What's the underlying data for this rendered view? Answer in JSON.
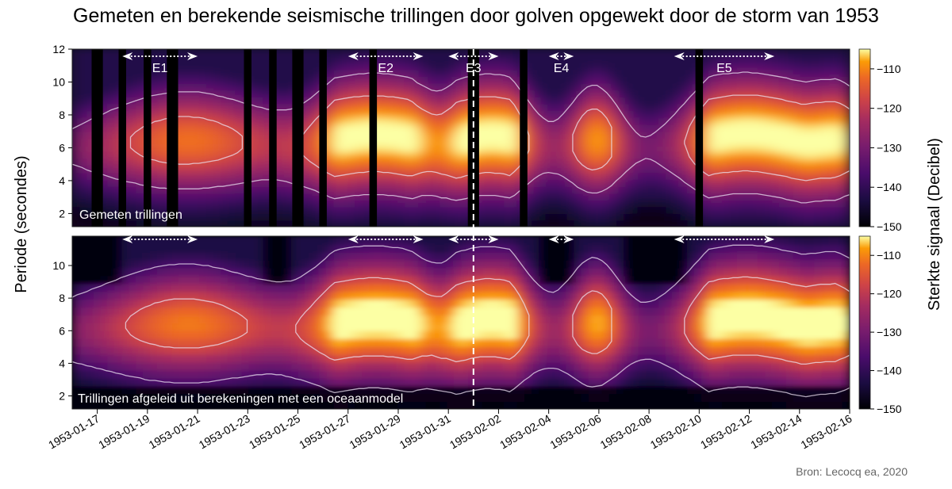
{
  "title": "Gemeten en berekende seismische trillingen door golven opgewekt door de storm van 1953",
  "credit": "Bron: Lecocq ea, 2020",
  "chart_data": {
    "type": "heatmap",
    "ylabel": "Periode (secondes)",
    "colorbar_label": "Sterkte signaal (Decibel)",
    "colorbar_ticks": [
      -110,
      -120,
      -130,
      -140,
      -150
    ],
    "colorbar_range": [
      -150,
      -105
    ],
    "colormap": "inferno",
    "x_ticks": [
      "1953-01-17",
      "1953-01-19",
      "1953-01-21",
      "1953-01-23",
      "1953-01-25",
      "1953-01-27",
      "1953-01-29",
      "1953-01-31",
      "1953-02-02",
      "1953-02-04",
      "1953-02-06",
      "1953-02-08",
      "1953-02-10",
      "1953-02-12",
      "1953-02-14",
      "1953-02-16"
    ],
    "x_range": [
      "1953-01-16",
      "1953-02-16"
    ],
    "dashed_marker_date": "1953-02-01",
    "events": [
      {
        "label": "E1",
        "start": "1953-01-18",
        "end": "1953-01-21"
      },
      {
        "label": "E2",
        "start": "1953-01-27",
        "end": "1953-01-30"
      },
      {
        "label": "E3",
        "start": "1953-01-31",
        "end": "1953-02-02"
      },
      {
        "label": "E4",
        "start": "1953-02-04",
        "end": "1953-02-05"
      },
      {
        "label": "E5",
        "start": "1953-02-09",
        "end": "1953-02-13"
      }
    ],
    "panels": [
      {
        "name": "top",
        "label": "Gemeten trillingen",
        "y_ticks": [
          2,
          4,
          6,
          8,
          10,
          12
        ],
        "y_range": [
          1.2,
          12
        ],
        "data_gaps": [
          "1953-01-17",
          "1953-01-18",
          "1953-01-19",
          "1953-01-20",
          "1953-01-23",
          "1953-01-24",
          "1953-01-25",
          "1953-01-26",
          "1953-01-28",
          "1953-02-01",
          "1953-02-03",
          "1953-02-10"
        ]
      },
      {
        "name": "bottom",
        "label": "Trillingen afgeleid uit berekeningen met een oceaanmodel",
        "y_ticks": [
          2,
          4,
          6,
          8,
          10
        ],
        "y_range": [
          1.2,
          11.8
        ]
      }
    ]
  }
}
